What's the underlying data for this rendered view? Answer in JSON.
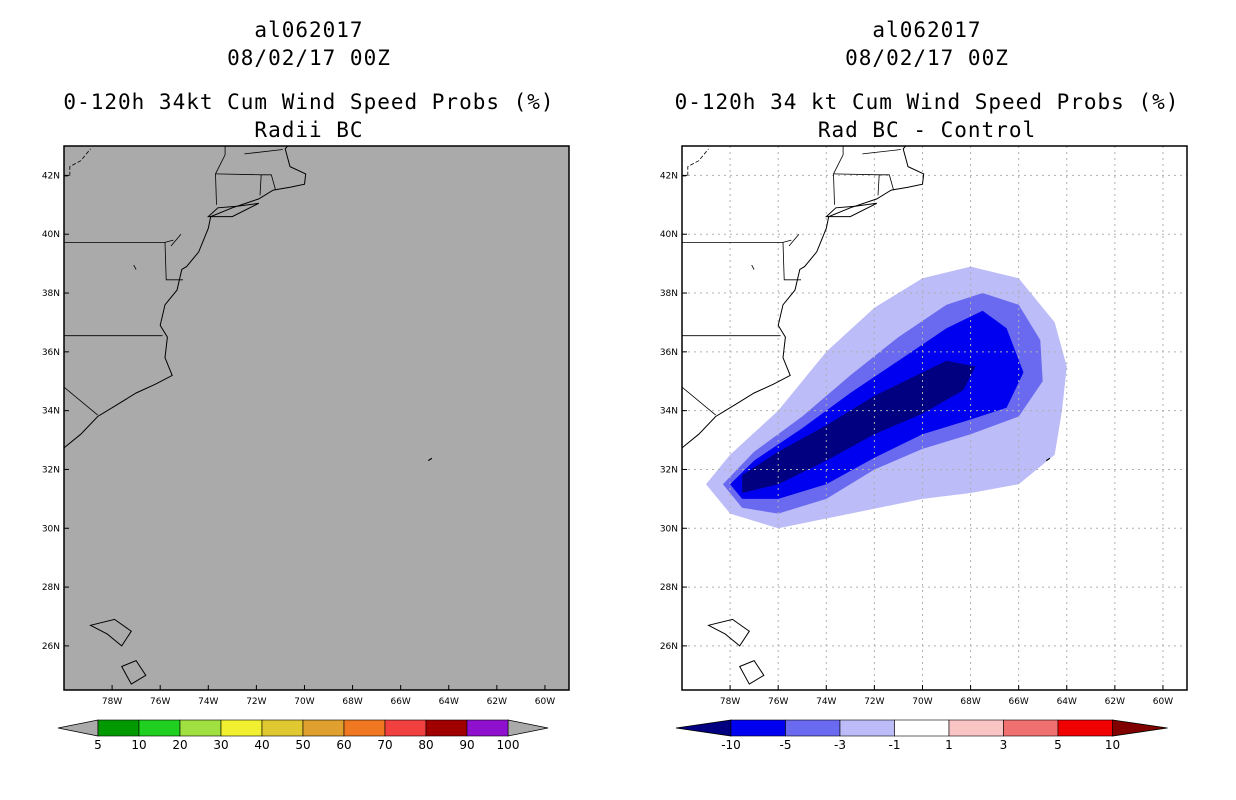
{
  "colors": {
    "left_background": "#aaaaaa",
    "prob_scale": [
      "#009a00",
      "#20d020",
      "#a0e040",
      "#f0f030",
      "#e0c830",
      "#e0a030",
      "#f07820",
      "#f04040",
      "#a00000",
      "#9010d0"
    ],
    "diff_scale": [
      "#000080",
      "#0000f0",
      "#6a6af0",
      "#bcbcf8",
      "#ffffff",
      "#f8c4c4",
      "#f07070",
      "#f00000",
      "#800000"
    ]
  },
  "chart_data": [
    {
      "type": "heatmap",
      "storm_id": "al062017",
      "date": "08/02/17 00Z",
      "title": "0-120h 34kt Cum Wind Speed Probs (%)",
      "subtitle": "Radii BC",
      "x_ticks": [
        "78W",
        "76W",
        "74W",
        "72W",
        "70W",
        "68W",
        "66W",
        "64W",
        "62W",
        "60W"
      ],
      "y_ticks": [
        "42N",
        "40N",
        "38N",
        "36N",
        "34N",
        "32N",
        "30N",
        "28N",
        "26N"
      ],
      "xlim": [
        -80,
        -59
      ],
      "ylim": [
        24.5,
        43
      ],
      "grid": false,
      "field": "no probabilities shown (gray background)",
      "colorbar": {
        "labels": [
          "5",
          "10",
          "20",
          "30",
          "40",
          "50",
          "60",
          "70",
          "80",
          "90",
          "100"
        ]
      }
    },
    {
      "type": "heatmap",
      "storm_id": "al062017",
      "date": "08/02/17 00Z",
      "title": "0-120h 34 kt Cum Wind Speed Probs (%)",
      "subtitle": "Rad BC - Control",
      "x_ticks": [
        "78W",
        "76W",
        "74W",
        "72W",
        "70W",
        "68W",
        "66W",
        "64W",
        "62W",
        "60W"
      ],
      "y_ticks": [
        "42N",
        "40N",
        "38N",
        "36N",
        "34N",
        "32N",
        "30N",
        "28N",
        "26N"
      ],
      "xlim": [
        -80,
        -59
      ],
      "ylim": [
        24.5,
        43
      ],
      "grid": true,
      "field": "negative difference swath from ~78W,31N to ~65W,38N",
      "contour_levels": {
        "lt_-1": [
          [
            -78,
            30.5
          ],
          [
            -76,
            30
          ],
          [
            -73,
            30.5
          ],
          [
            -70,
            31
          ],
          [
            -68,
            31.2
          ],
          [
            -66,
            31.5
          ],
          [
            -64.5,
            32.5
          ],
          [
            -64.2,
            34
          ],
          [
            -64,
            35.5
          ],
          [
            -64.5,
            37
          ],
          [
            -66,
            38.5
          ],
          [
            -68,
            38.9
          ],
          [
            -70,
            38.5
          ],
          [
            -72,
            37.5
          ],
          [
            -74,
            36
          ],
          [
            -76,
            34
          ],
          [
            -78,
            32.5
          ],
          [
            -79,
            31.5
          ]
        ],
        "lt_-3": [
          [
            -77.5,
            30.7
          ],
          [
            -76,
            30.5
          ],
          [
            -74,
            31
          ],
          [
            -72,
            32
          ],
          [
            -70,
            32.7
          ],
          [
            -68,
            33.2
          ],
          [
            -66,
            33.8
          ],
          [
            -65,
            35
          ],
          [
            -65.1,
            36.4
          ],
          [
            -66,
            37.6
          ],
          [
            -67.5,
            38
          ],
          [
            -69,
            37.6
          ],
          [
            -71,
            36.5
          ],
          [
            -73,
            35.2
          ],
          [
            -75,
            33.8
          ],
          [
            -77,
            32.6
          ],
          [
            -78.3,
            31.5
          ]
        ],
        "lt_-5": [
          [
            -77.5,
            31
          ],
          [
            -76,
            31
          ],
          [
            -74,
            31.5
          ],
          [
            -72,
            32.4
          ],
          [
            -70,
            33.2
          ],
          [
            -68,
            33.7
          ],
          [
            -66.5,
            34.1
          ],
          [
            -65.8,
            35.3
          ],
          [
            -66.5,
            36.8
          ],
          [
            -67.5,
            37.4
          ],
          [
            -69,
            36.8
          ],
          [
            -71,
            35.7
          ],
          [
            -73,
            34.6
          ],
          [
            -75,
            33.4
          ],
          [
            -77,
            32.3
          ],
          [
            -78,
            31.5
          ]
        ],
        "lt_-10": [
          [
            -77.5,
            31.2
          ],
          [
            -76,
            31.5
          ],
          [
            -74,
            32.3
          ],
          [
            -72,
            33.2
          ],
          [
            -70,
            33.9
          ],
          [
            -68.3,
            34.7
          ],
          [
            -67.8,
            35.5
          ],
          [
            -69,
            35.7
          ],
          [
            -70.5,
            35.1
          ],
          [
            -72,
            34.5
          ],
          [
            -74,
            33.5
          ],
          [
            -76,
            32.6
          ],
          [
            -77.5,
            31.8
          ]
        ]
      },
      "colorbar": {
        "labels": [
          "-10",
          "-5",
          "-3",
          "-1",
          "1",
          "3",
          "5",
          "10"
        ]
      }
    }
  ]
}
